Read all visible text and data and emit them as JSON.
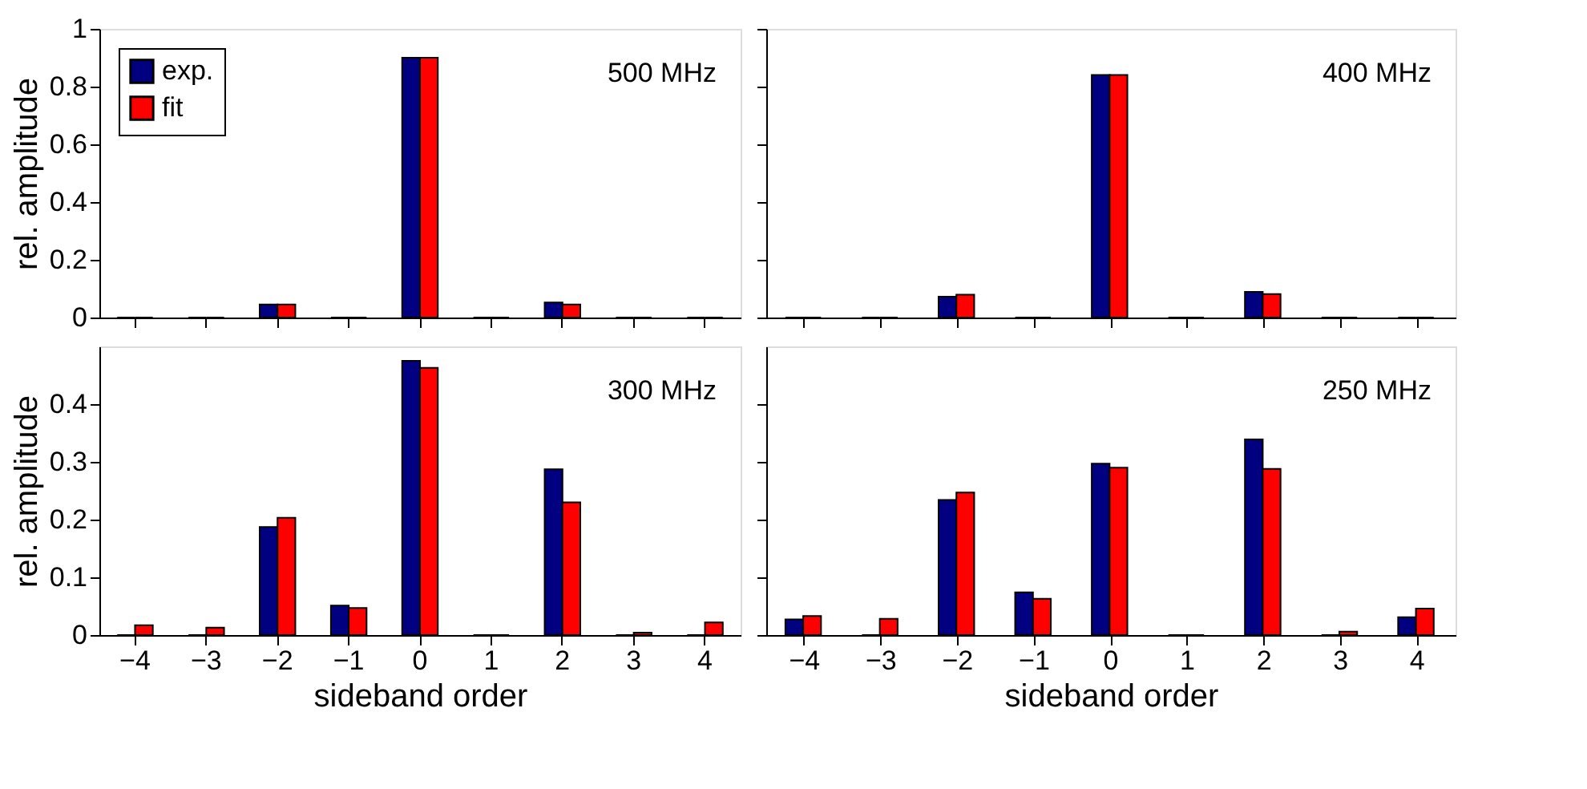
{
  "chart_data": [
    {
      "type": "bar",
      "ylabel": "rel. amplitude",
      "categories": [
        "−4",
        "−3",
        "−2",
        "−1",
        "0",
        "1",
        "2",
        "3",
        "4"
      ],
      "series": [
        {
          "name": "exp.",
          "color": "#000080",
          "values": [
            0,
            0,
            0.045,
            0,
            0.9,
            0,
            0.052,
            0,
            0
          ]
        },
        {
          "name": "fit",
          "color": "#ff0000",
          "values": [
            0,
            0,
            0.045,
            0,
            0.9,
            0,
            0.045,
            0,
            0
          ]
        }
      ],
      "ylim": [
        0,
        1
      ],
      "yticks": [
        0,
        0.2,
        0.4,
        0.6,
        0.8,
        1
      ],
      "annotations": [
        "500 MHz"
      ],
      "legend": "top left",
      "tick_labels": "y"
    },
    {
      "type": "bar",
      "categories": [
        "−4",
        "−3",
        "−2",
        "−1",
        "0",
        "1",
        "2",
        "3",
        "4"
      ],
      "series": [
        {
          "name": "exp.",
          "color": "#000080",
          "values": [
            0,
            0,
            0.072,
            0,
            0.84,
            0,
            0.089,
            0,
            0
          ]
        },
        {
          "name": "fit",
          "color": "#ff0000",
          "values": [
            0,
            0,
            0.079,
            0,
            0.84,
            0,
            0.081,
            0,
            0
          ]
        }
      ],
      "ylim": [
        0,
        1
      ],
      "yticks": [
        0,
        0.2,
        0.4,
        0.6,
        0.8,
        1
      ],
      "annotations": [
        "400 MHz"
      ],
      "legend": "top left",
      "tick_labels": false
    },
    {
      "type": "bar",
      "xlabel": "sideband order",
      "ylabel": "rel. amplitude",
      "categories": [
        "−4",
        "−3",
        "−2",
        "−1",
        "0",
        "1",
        "2",
        "3",
        "4"
      ],
      "series": [
        {
          "name": "exp.",
          "color": "#000080",
          "values": [
            0,
            0,
            0.187,
            0.051,
            0.475,
            0,
            0.287,
            0,
            0
          ]
        },
        {
          "name": "fit",
          "color": "#ff0000",
          "values": [
            0.017,
            0.013,
            0.203,
            0.047,
            0.463,
            0,
            0.23,
            0.004,
            0.022
          ]
        }
      ],
      "ylim": [
        0,
        0.5
      ],
      "yticks": [
        0,
        0.1,
        0.2,
        0.3,
        0.4
      ],
      "annotations": [
        "300 MHz"
      ],
      "legend": "top left"
    },
    {
      "type": "bar",
      "xlabel": "sideband order",
      "categories": [
        "−4",
        "−3",
        "−2",
        "−1",
        "0",
        "1",
        "2",
        "3",
        "4"
      ],
      "series": [
        {
          "name": "exp.",
          "color": "#000080",
          "values": [
            0.027,
            0,
            0.234,
            0.074,
            0.297,
            0,
            0.339,
            0,
            0.031
          ]
        },
        {
          "name": "fit",
          "color": "#ff0000",
          "values": [
            0.033,
            0.028,
            0.247,
            0.063,
            0.29,
            0,
            0.288,
            0.006,
            0.046
          ]
        }
      ],
      "ylim": [
        0,
        0.5
      ],
      "yticks": [
        0,
        0.1,
        0.2,
        0.3,
        0.4
      ],
      "annotations": [
        "250 MHz"
      ],
      "legend": "top left",
      "tick_labels": "x"
    }
  ]
}
